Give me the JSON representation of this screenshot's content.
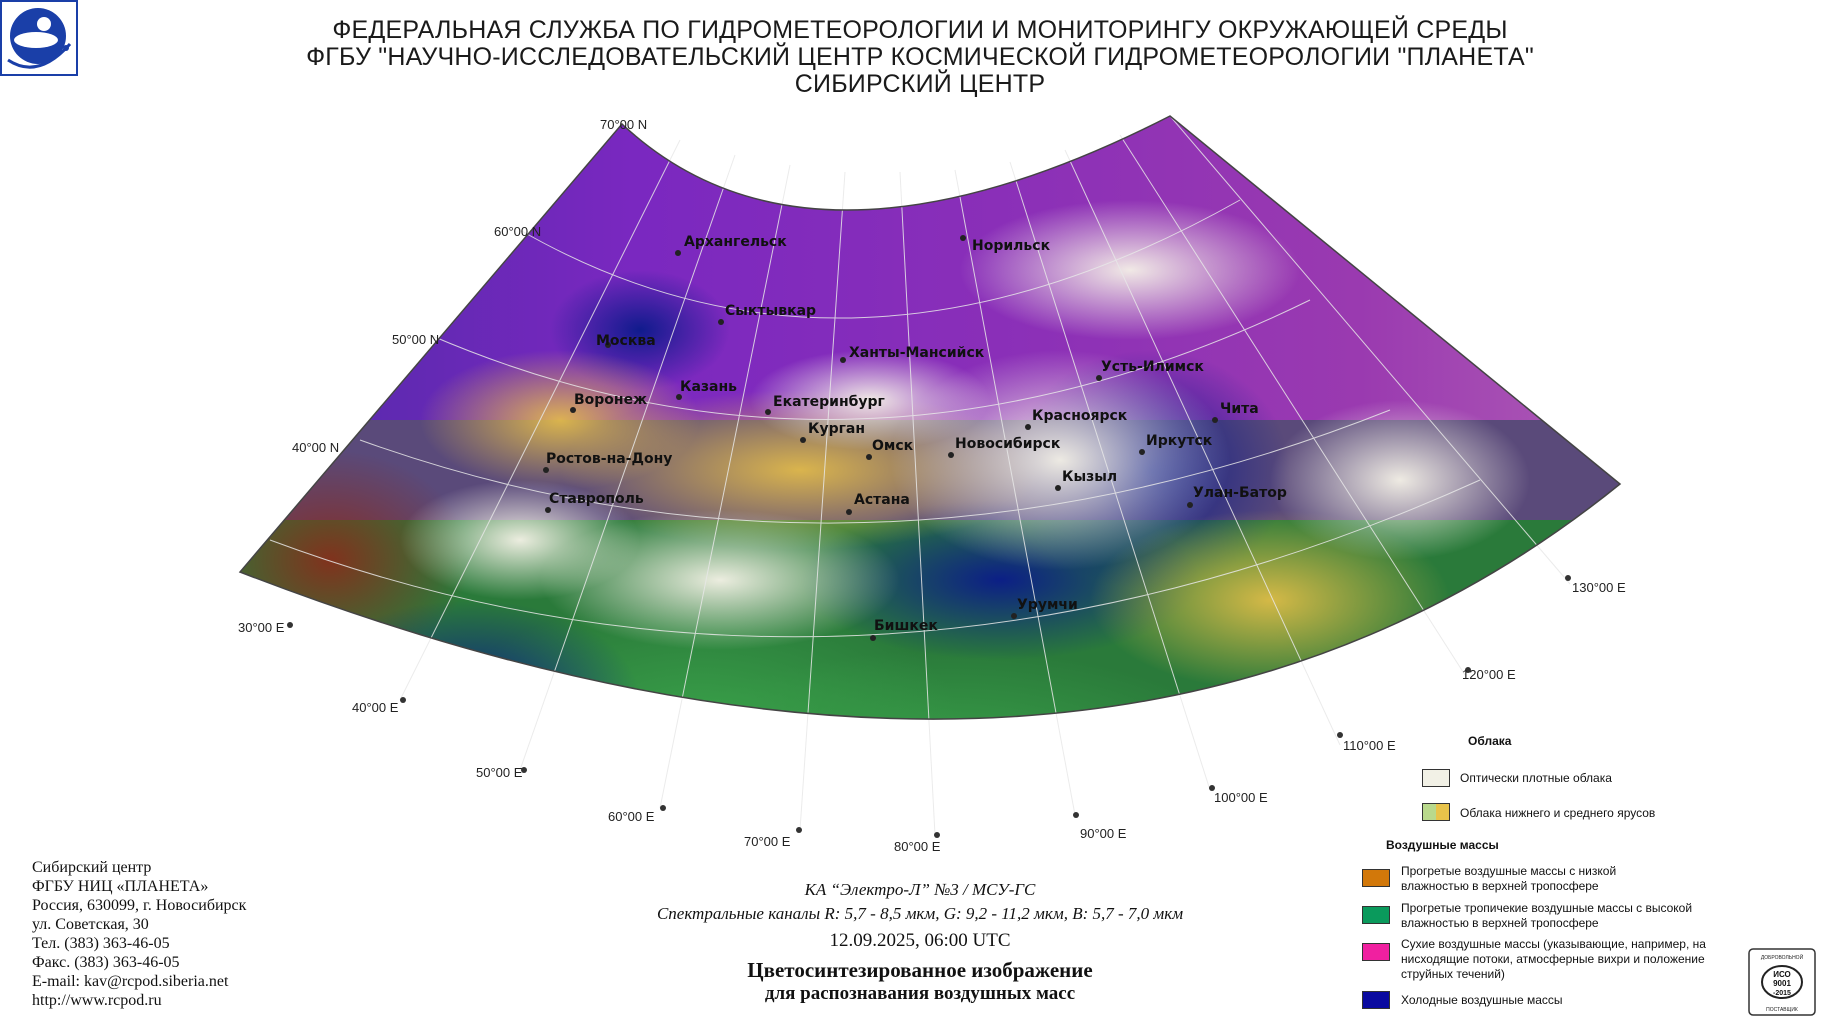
{
  "header": {
    "line1": "ФЕДЕРАЛЬНАЯ СЛУЖБА ПО ГИДРОМЕТЕОРОЛОГИИ И МОНИТОРИНГУ ОКРУЖАЮЩЕЙ СРЕДЫ",
    "line2": "ФГБУ \"НАУЧНО-ИССЛЕДОВАТЕЛЬСКИЙ ЦЕНТР КОСМИЧЕСКОЙ ГИДРОМЕТЕОРОЛОГИИ \"ПЛАНЕТА\"",
    "line3": "СИБИРСКИЙ ЦЕНТР"
  },
  "map": {
    "lat_labels": [
      "70°00 N",
      "60°00 N",
      "50°00 N",
      "40°00 N"
    ],
    "lon_labels": [
      "30°00 E",
      "40°00 E",
      "50°00 E",
      "60°00 E",
      "70°00 E",
      "80°00 E",
      "90°00 E",
      "100°00 E",
      "110°00 E",
      "120°00 E",
      "130°00 E"
    ],
    "cities": [
      {
        "name": "Архангельск"
      },
      {
        "name": "Норильск"
      },
      {
        "name": "Сыктывкар"
      },
      {
        "name": "Москва"
      },
      {
        "name": "Ханты-Мансийск"
      },
      {
        "name": "Казань"
      },
      {
        "name": "Усть-Илимск"
      },
      {
        "name": "Воронеж"
      },
      {
        "name": "Екатеринбург"
      },
      {
        "name": "Чита"
      },
      {
        "name": "Красноярск"
      },
      {
        "name": "Курган"
      },
      {
        "name": "Иркутск"
      },
      {
        "name": "Омск"
      },
      {
        "name": "Новосибирск"
      },
      {
        "name": "Ростов-на-Дону"
      },
      {
        "name": "Кызыл"
      },
      {
        "name": "Улан-Батор"
      },
      {
        "name": "Ставрополь"
      },
      {
        "name": "Астана"
      },
      {
        "name": "Урумчи"
      },
      {
        "name": "Бишкек"
      }
    ]
  },
  "contact": {
    "lines": [
      "Сибирский центр",
      "ФГБУ НИЦ «ПЛАНЕТА»",
      "Россия, 630099, г. Новосибирск",
      "ул. Советская, 30",
      "Тел. (383) 363-46-05",
      "Факс. (383) 363-46-05",
      "E-mail: kav@rcpod.siberia.net",
      "http://www.rcpod.ru"
    ]
  },
  "caption": {
    "satellite": "КА “Электро-Л” №3 / МСУ-ГС",
    "channels": "Спектральные каналы R: 5,7 - 8,5 мкм, G: 9,2 - 11,2 мкм, B: 5,7 - 7,0 мкм",
    "datetime": "12.09.2025, 06:00 UTC",
    "title1": "Цветосинтезированное изображение",
    "title2": "для распознавания воздушных масс"
  },
  "legend": {
    "clouds_title": "Облака",
    "dense_clouds": "Оптически плотные облака",
    "low_mid_clouds": "Облака нижнего и среднего ярусов",
    "air_masses_title": "Воздушные массы",
    "warm_low": "Прогретые воздушные массы с низкой влажностью в верхней тропосфере",
    "warm_tropical": "Прогретые тропичекие воздушные массы с высокой влажностью в верхней тропосфере",
    "dry": "Сухие воздушные массы (указывающие, например, на нисходящие потоки, атмосферные вихри и положение струйных течений)",
    "cold": "Холодные воздушные массы",
    "colors": {
      "dense": "#f2f1e6",
      "low_mid_a": "#b9d98c",
      "low_mid_b": "#e8c34a",
      "warm_low": "#d2780a",
      "warm_tropical": "#0a9a5c",
      "dry": "#f020a0",
      "cold": "#0a0aa0"
    }
  },
  "iso_badge": {
    "top": "ДОБРОВОЛЬНОЙ",
    "mid1": "ИСО",
    "mid2": "9001",
    "mid3": "-2015",
    "bottom": "ПОСТАВЩИК"
  }
}
